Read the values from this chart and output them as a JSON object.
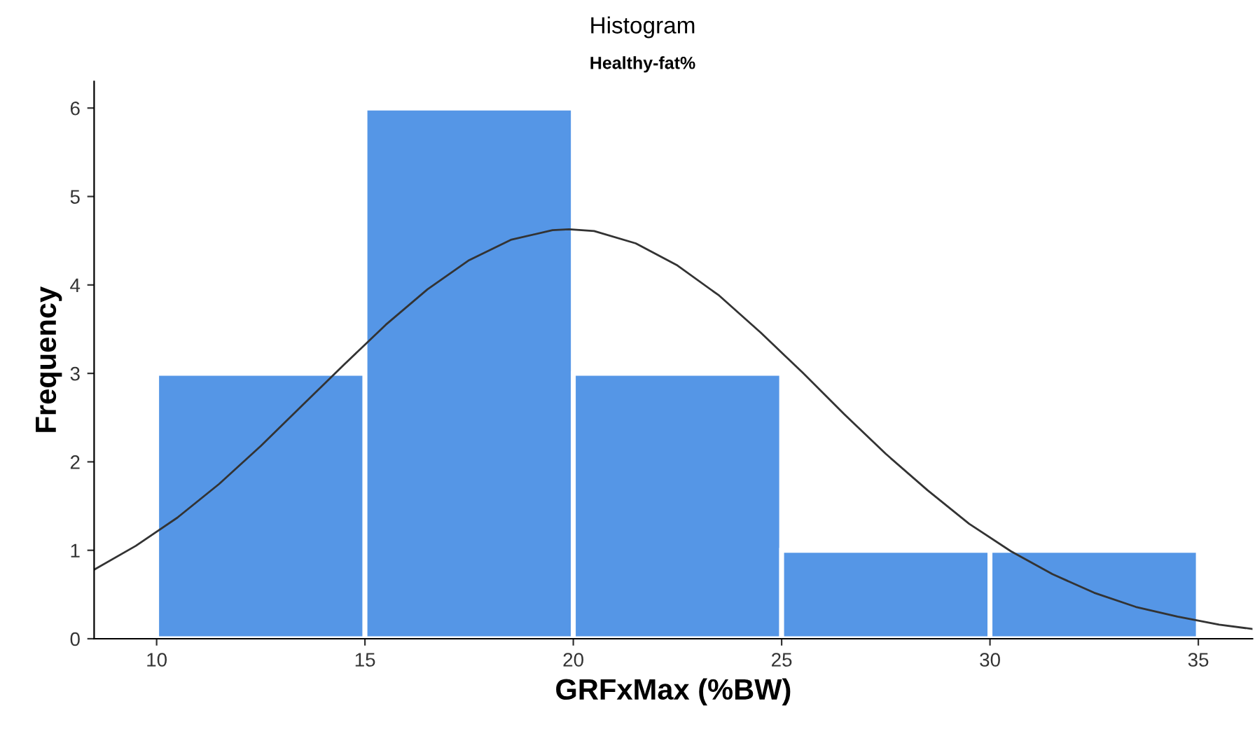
{
  "chart_data": {
    "type": "histogram",
    "title": "Histogram",
    "subtitle": "Healthy-fat%",
    "xlabel": "GRFxMax (%BW)",
    "ylabel": "Frequency",
    "bins": [
      10,
      15,
      20,
      25,
      30,
      35
    ],
    "values": [
      3,
      6,
      3,
      1,
      1
    ],
    "color": "#5596e6",
    "series": [
      {
        "type": "line",
        "color": "#333333",
        "x": [
          8.5,
          9.5,
          10.5,
          11.5,
          12.5,
          13.5,
          14.5,
          15.5,
          16.5,
          17.5,
          18.5,
          19.5,
          19.9,
          20.5,
          21.5,
          22.5,
          23.5,
          24.5,
          25.5,
          26.5,
          27.5,
          28.5,
          29.5,
          30.5,
          31.5,
          32.5,
          33.5,
          34.5,
          35.5,
          36.3
        ],
        "values": [
          0.78,
          1.05,
          1.37,
          1.75,
          2.18,
          2.64,
          3.1,
          3.55,
          3.95,
          4.28,
          4.51,
          4.62,
          4.63,
          4.61,
          4.47,
          4.22,
          3.88,
          3.46,
          3.01,
          2.54,
          2.09,
          1.68,
          1.3,
          0.99,
          0.73,
          0.52,
          0.36,
          0.25,
          0.16,
          0.11
        ]
      }
    ],
    "xlim": [
      8.5,
      36.3
    ],
    "ylim": [
      0,
      6.3
    ],
    "xticks": [
      10,
      15,
      20,
      25,
      30,
      35
    ],
    "yticks": [
      0,
      1,
      2,
      3,
      4,
      5,
      6
    ],
    "grid": false,
    "legend": false
  }
}
